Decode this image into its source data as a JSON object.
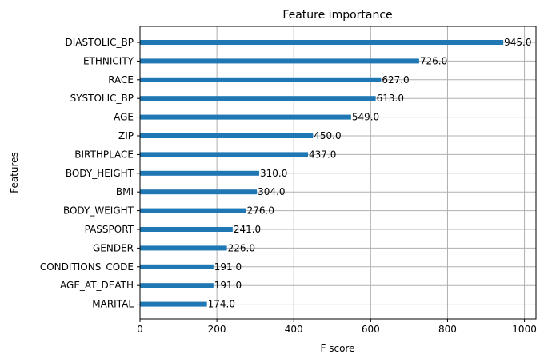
{
  "chart_data": {
    "type": "bar",
    "orientation": "horizontal",
    "title": "Feature importance",
    "xlabel": "F score",
    "ylabel": "Features",
    "xlim": [
      0,
      1030
    ],
    "xticks": [
      0,
      200,
      400,
      600,
      800,
      1000
    ],
    "grid": true,
    "categories": [
      "DIASTOLIC_BP",
      "ETHNICITY",
      "RACE",
      "SYSTOLIC_BP",
      "AGE",
      "ZIP",
      "BIRTHPLACE",
      "BODY_HEIGHT",
      "BMI",
      "BODY_WEIGHT",
      "PASSPORT",
      "GENDER",
      "CONDITIONS_CODE",
      "AGE_AT_DEATH",
      "MARITAL"
    ],
    "values": [
      945,
      726,
      627,
      613,
      549,
      450,
      437,
      310,
      304,
      276,
      241,
      226,
      191,
      191,
      174
    ],
    "data_labels": [
      "945.0",
      "726.0",
      "627.0",
      "613.0",
      "549.0",
      "450.0",
      "437.0",
      "310.0",
      "304.0",
      "276.0",
      "241.0",
      "226.0",
      "191.0",
      "191.0",
      "174.0"
    ],
    "bar_color": "#1f77b4"
  }
}
